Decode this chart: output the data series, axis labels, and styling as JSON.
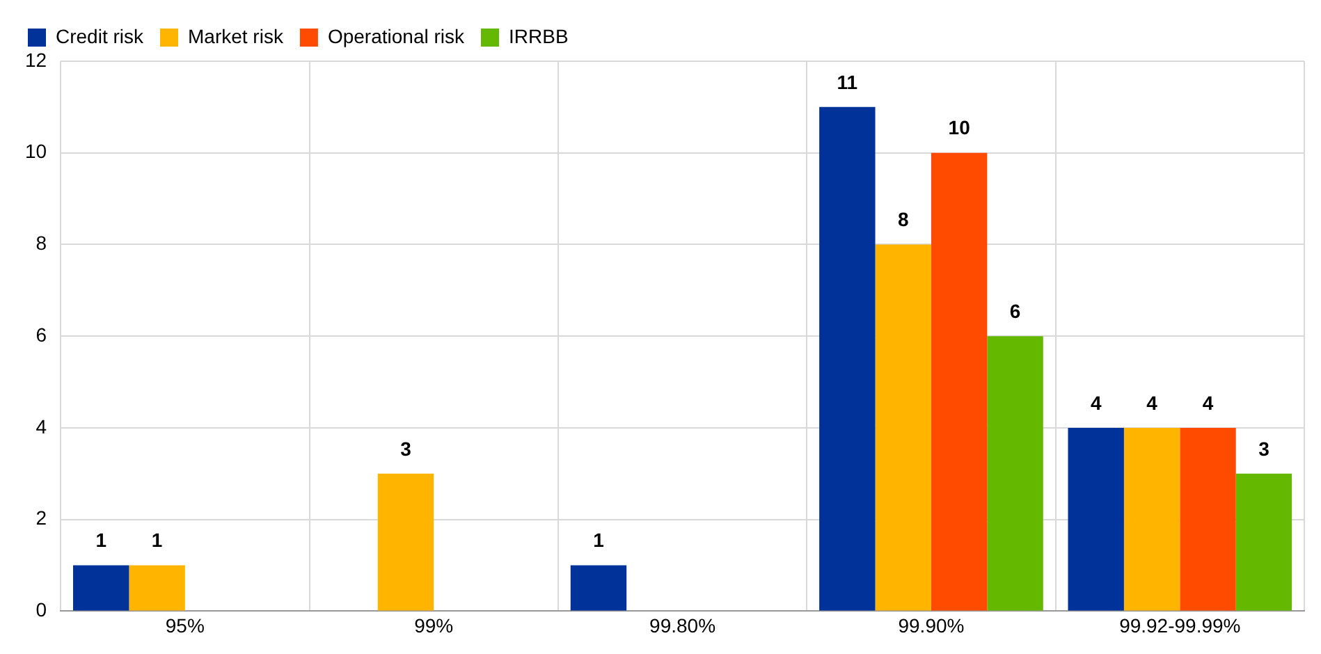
{
  "chart_data": {
    "type": "bar",
    "categories": [
      "95%",
      "99%",
      "99.80%",
      "99.90%",
      "99.92-99.99%"
    ],
    "series": [
      {
        "name": "Credit risk",
        "color": "#003299",
        "values": [
          1,
          null,
          1,
          11,
          4
        ]
      },
      {
        "name": "Market risk",
        "color": "#ffb400",
        "values": [
          1,
          3,
          null,
          8,
          4
        ]
      },
      {
        "name": "Operational risk",
        "color": "#ff4b00",
        "values": [
          null,
          null,
          null,
          10,
          4
        ]
      },
      {
        "name": "IRRBB",
        "color": "#65b800",
        "values": [
          null,
          null,
          null,
          6,
          3
        ]
      }
    ],
    "ylim": [
      0,
      12
    ],
    "yticks": [
      0,
      2,
      4,
      6,
      8,
      10,
      12
    ],
    "grid": true,
    "legend": "top left",
    "data_labels": true
  }
}
